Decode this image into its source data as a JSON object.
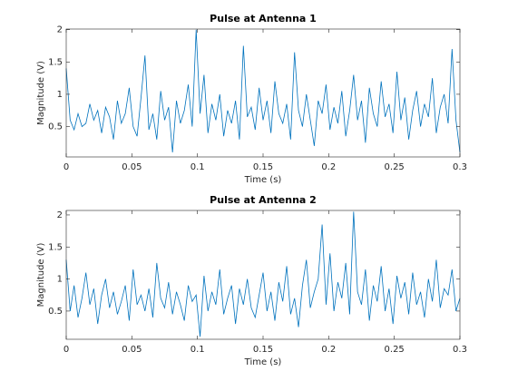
{
  "chart_data": [
    {
      "type": "line",
      "title": "Pulse at Antenna 1",
      "xlabel": "Time (s)",
      "ylabel": "Magnitude (V)",
      "color": "#0072bd",
      "x": [
        0,
        0.003,
        0.006,
        0.009,
        0.012,
        0.015,
        0.018,
        0.021,
        0.024,
        0.027,
        0.03,
        0.033,
        0.036,
        0.039,
        0.042,
        0.045,
        0.048,
        0.051,
        0.054,
        0.057,
        0.06,
        0.063,
        0.066,
        0.069,
        0.072,
        0.075,
        0.078,
        0.081,
        0.084,
        0.087,
        0.09,
        0.093,
        0.096,
        0.099,
        0.102,
        0.105,
        0.108,
        0.111,
        0.114,
        0.117,
        0.12,
        0.123,
        0.126,
        0.129,
        0.132,
        0.135,
        0.138,
        0.141,
        0.144,
        0.147,
        0.15,
        0.153,
        0.156,
        0.159,
        0.162,
        0.165,
        0.168,
        0.171,
        0.174,
        0.177,
        0.18,
        0.183,
        0.186,
        0.189,
        0.192,
        0.195,
        0.198,
        0.201,
        0.204,
        0.207,
        0.21,
        0.213,
        0.216,
        0.219,
        0.222,
        0.225,
        0.228,
        0.231,
        0.234,
        0.237,
        0.24,
        0.243,
        0.246,
        0.249,
        0.252,
        0.255,
        0.258,
        0.261,
        0.264,
        0.267,
        0.27,
        0.273,
        0.276,
        0.279,
        0.282,
        0.285,
        0.288,
        0.291,
        0.294,
        0.297,
        0.3
      ],
      "values": [
        1.4,
        0.6,
        0.45,
        0.7,
        0.5,
        0.55,
        0.85,
        0.6,
        0.75,
        0.4,
        0.8,
        0.65,
        0.3,
        0.9,
        0.55,
        0.7,
        1.1,
        0.5,
        0.35,
        0.95,
        1.6,
        0.45,
        0.7,
        0.3,
        1.05,
        0.6,
        0.8,
        0.1,
        0.9,
        0.55,
        0.75,
        1.15,
        0.5,
        2.0,
        0.7,
        1.3,
        0.4,
        0.85,
        0.6,
        1.0,
        0.35,
        0.75,
        0.55,
        0.9,
        0.3,
        1.75,
        0.65,
        0.8,
        0.45,
        1.1,
        0.6,
        0.9,
        0.4,
        1.2,
        0.7,
        0.55,
        0.85,
        0.3,
        1.65,
        0.75,
        0.5,
        1.0,
        0.6,
        0.2,
        0.9,
        0.7,
        1.15,
        0.45,
        0.8,
        0.55,
        1.05,
        0.35,
        0.75,
        1.3,
        0.6,
        0.9,
        0.25,
        1.1,
        0.7,
        0.5,
        1.2,
        0.65,
        0.85,
        0.4,
        1.35,
        0.6,
        0.95,
        0.3,
        0.75,
        1.05,
        0.5,
        0.85,
        0.65,
        1.25,
        0.4,
        0.8,
        1.0,
        0.55,
        1.7,
        0.6,
        0.1
      ],
      "xlim": [
        0,
        0.3
      ],
      "xticks": [
        0,
        0.05,
        0.1,
        0.15,
        0.2,
        0.25,
        0.3
      ],
      "ylim": [
        0.03,
        2.01
      ],
      "yticks": [
        0.5,
        1,
        1.5,
        2
      ]
    },
    {
      "type": "line",
      "title": "Pulse at Antenna 2",
      "xlabel": "Time (s)",
      "ylabel": "Magnitude (V)",
      "color": "#0072bd",
      "x": [
        0,
        0.003,
        0.006,
        0.009,
        0.012,
        0.015,
        0.018,
        0.021,
        0.024,
        0.027,
        0.03,
        0.033,
        0.036,
        0.039,
        0.042,
        0.045,
        0.048,
        0.051,
        0.054,
        0.057,
        0.06,
        0.063,
        0.066,
        0.069,
        0.072,
        0.075,
        0.078,
        0.081,
        0.084,
        0.087,
        0.09,
        0.093,
        0.096,
        0.099,
        0.102,
        0.105,
        0.108,
        0.111,
        0.114,
        0.117,
        0.12,
        0.123,
        0.126,
        0.129,
        0.132,
        0.135,
        0.138,
        0.141,
        0.144,
        0.147,
        0.15,
        0.153,
        0.156,
        0.159,
        0.162,
        0.165,
        0.168,
        0.171,
        0.174,
        0.177,
        0.18,
        0.183,
        0.186,
        0.189,
        0.192,
        0.195,
        0.198,
        0.201,
        0.204,
        0.207,
        0.21,
        0.213,
        0.216,
        0.219,
        0.222,
        0.225,
        0.228,
        0.231,
        0.234,
        0.237,
        0.24,
        0.243,
        0.246,
        0.249,
        0.252,
        0.255,
        0.258,
        0.261,
        0.264,
        0.267,
        0.27,
        0.273,
        0.276,
        0.279,
        0.282,
        0.285,
        0.288,
        0.291,
        0.294,
        0.297,
        0.3
      ],
      "values": [
        1.3,
        0.5,
        0.9,
        0.4,
        0.7,
        1.1,
        0.6,
        0.85,
        0.3,
        0.75,
        1.0,
        0.55,
        0.8,
        0.45,
        0.65,
        0.9,
        0.35,
        1.15,
        0.6,
        0.75,
        0.5,
        0.85,
        0.4,
        1.25,
        0.7,
        0.55,
        0.95,
        0.45,
        0.8,
        0.6,
        0.35,
        0.9,
        0.65,
        0.75,
        0.1,
        1.05,
        0.5,
        0.8,
        0.6,
        1.15,
        0.45,
        0.7,
        0.9,
        0.3,
        0.85,
        0.6,
        1.0,
        0.55,
        0.4,
        0.75,
        1.1,
        0.5,
        0.8,
        0.35,
        0.95,
        0.65,
        1.2,
        0.45,
        0.7,
        0.25,
        0.9,
        1.3,
        0.55,
        0.8,
        1.0,
        1.85,
        0.6,
        1.4,
        0.5,
        0.95,
        0.7,
        1.25,
        0.45,
        2.05,
        0.8,
        0.6,
        1.15,
        0.35,
        0.9,
        0.65,
        1.2,
        0.5,
        0.85,
        0.3,
        1.05,
        0.7,
        0.95,
        0.45,
        1.1,
        0.6,
        0.8,
        0.4,
        1.0,
        0.65,
        1.3,
        0.55,
        0.85,
        0.75,
        1.15,
        0.5,
        0.7
      ],
      "xlim": [
        0,
        0.3
      ],
      "xticks": [
        0,
        0.05,
        0.1,
        0.15,
        0.2,
        0.25,
        0.3
      ],
      "ylim": [
        0.06,
        2.07
      ],
      "yticks": [
        0.5,
        1,
        1.5,
        2
      ]
    }
  ]
}
